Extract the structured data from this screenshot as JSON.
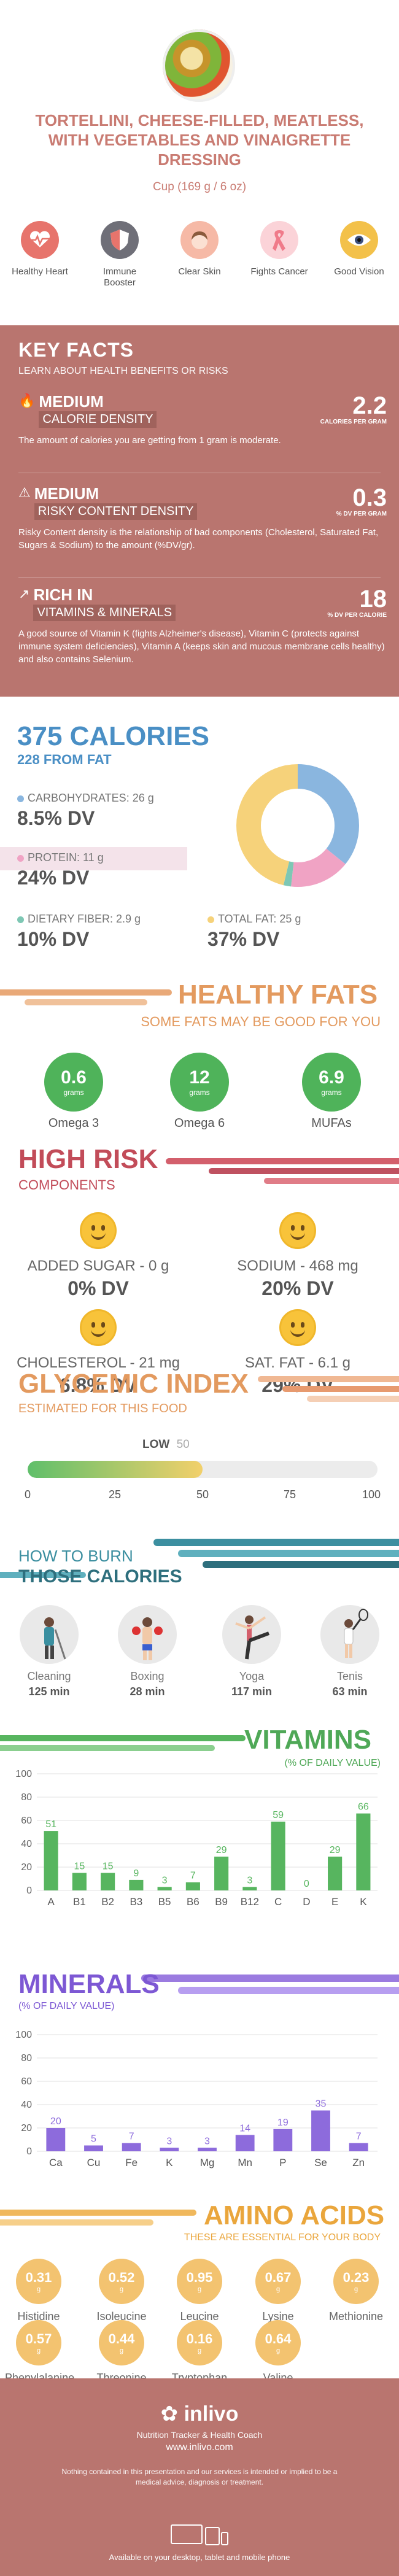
{
  "header": {
    "title": "TORTELLINI, CHEESE-FILLED, MEATLESS, WITH VEGETABLES AND VINAIGRETTE DRESSING",
    "serving": "Cup (169 g / 6 oz)"
  },
  "benefits": [
    {
      "label": "Healthy Heart",
      "icon": "heart-pulse-icon",
      "color": "#e7746c"
    },
    {
      "label": "Immune Booster",
      "icon": "shield-icon",
      "color": "#6f6f78"
    },
    {
      "label": "Clear Skin",
      "icon": "face-icon",
      "color": "#f6b9a6"
    },
    {
      "label": "Fights Cancer",
      "icon": "ribbon-icon",
      "color": "#f07b8a"
    },
    {
      "label": "Good Vision",
      "icon": "eye-icon",
      "color": "#f3c14a"
    }
  ],
  "key_facts": {
    "title": "KEY FACTS",
    "subtitle": "LEARN ABOUT HEALTH BENEFITS OR RISKS",
    "items": [
      {
        "level": "MEDIUM",
        "label": "CALORIE DENSITY",
        "value": "2.2",
        "unit": "CALORIES PER GRAM",
        "desc": "The amount of calories you are getting from 1 gram is moderate."
      },
      {
        "level": "MEDIUM",
        "label": "RISKY CONTENT DENSITY",
        "value": "0.3",
        "unit": "% DV PER GRAM",
        "desc": "Risky Content density is the relationship of bad components (Cholesterol, Saturated Fat, Sugars & Sodium) to the amount (%DV/gr)."
      },
      {
        "level": "RICH IN",
        "label": "VITAMINS & MINERALS",
        "value": "18",
        "unit": "% DV PER CALORIE",
        "desc": "A good source of Vitamin K (fights Alzheimer's disease), Vitamin C (protects against immune system deficiencies), Vitamin A (keeps skin and mucous membrane cells healthy) and also contains Selenium."
      }
    ]
  },
  "calories": {
    "title": "375 CALORIES",
    "subtitle": "228 FROM FAT",
    "carbs": {
      "label": "CARBOHYDRATES: 26 g",
      "dv": "8.5% DV",
      "color": "#8ab6df"
    },
    "protein": {
      "label": "PROTEIN: 11 g",
      "dv": "24% DV",
      "color": "#f0a3c4"
    },
    "fiber": {
      "label": "DIETARY FIBER: 2.9 g",
      "dv": "10% DV",
      "color": "#7ec7b4"
    },
    "fat": {
      "label": "TOTAL FAT: 25 g",
      "dv": "37% DV",
      "color": "#f6d27a"
    }
  },
  "healthy_fats": {
    "title": "HEALTHY FATS",
    "subtitle": "SOME FATS MAY BE GOOD FOR YOU",
    "items": [
      {
        "value": "0.6",
        "unit": "grams",
        "label": "Omega 3"
      },
      {
        "value": "12",
        "unit": "grams",
        "label": "Omega 6"
      },
      {
        "value": "6.9",
        "unit": "grams",
        "label": "MUFAs"
      }
    ]
  },
  "high_risk": {
    "title": "HIGH RISK",
    "subtitle": "COMPONENTS",
    "items": [
      {
        "label": "ADDED SUGAR - 0 g",
        "dv": "0% DV"
      },
      {
        "label": "SODIUM - 468 mg",
        "dv": "20% DV"
      },
      {
        "label": "CHOLESTEROL - 21 mg",
        "dv": "6.8% DV"
      },
      {
        "label": "SAT. FAT - 6.1 g",
        "dv": "29% DV"
      }
    ]
  },
  "glycemic": {
    "title": "GLYCEMIC INDEX",
    "subtitle": "ESTIMATED FOR THIS FOOD",
    "level": "LOW",
    "value": 50,
    "value_text": "50",
    "ticks": [
      "0",
      "25",
      "50",
      "75",
      "100"
    ]
  },
  "burn": {
    "title_top": "HOW TO BURN",
    "title_bottom": "THOSE CALORIES",
    "items": [
      {
        "label": "Cleaning",
        "time": "125 min"
      },
      {
        "label": "Boxing",
        "time": "28 min"
      },
      {
        "label": "Yoga",
        "time": "117 min"
      },
      {
        "label": "Tenis",
        "time": "63 min"
      }
    ]
  },
  "chart_data": [
    {
      "type": "bar",
      "title": "VITAMINS",
      "subtitle": "(% OF DAILY VALUE)",
      "categories": [
        "A",
        "B1",
        "B2",
        "B3",
        "B5",
        "B6",
        "B9",
        "B12",
        "C",
        "D",
        "E",
        "K"
      ],
      "values": [
        51,
        15,
        15,
        9,
        3,
        7,
        29,
        3,
        59,
        0,
        29,
        66
      ],
      "ylim": [
        0,
        100
      ],
      "yticks": [
        "0",
        "20",
        "40",
        "60",
        "80",
        "100"
      ],
      "color": "#57b55f"
    },
    {
      "type": "bar",
      "title": "MINERALS",
      "subtitle": "(% OF DAILY VALUE)",
      "categories": [
        "Ca",
        "Cu",
        "Fe",
        "K",
        "Mg",
        "Mn",
        "P",
        "Se",
        "Zn"
      ],
      "values": [
        20,
        5,
        7,
        3,
        3,
        14,
        19,
        35,
        7
      ],
      "ylim": [
        0,
        100
      ],
      "yticks": [
        "0",
        "20",
        "40",
        "60",
        "80",
        "100"
      ],
      "color": "#8d6bdc"
    }
  ],
  "amino": {
    "title": "AMINO ACIDS",
    "subtitle": "THESE ARE ESSENTIAL FOR YOUR BODY",
    "unit": "g",
    "items": [
      {
        "value": "0.31",
        "label": "Histidine"
      },
      {
        "value": "0.52",
        "label": "Isoleucine"
      },
      {
        "value": "0.95",
        "label": "Leucine"
      },
      {
        "value": "0.67",
        "label": "Lysine"
      },
      {
        "value": "0.23",
        "label": "Methionine"
      },
      {
        "value": "0.57",
        "label": "Phenylalanine"
      },
      {
        "value": "0.44",
        "label": "Threonine"
      },
      {
        "value": "0.16",
        "label": "Tryptophan"
      },
      {
        "value": "0.64",
        "label": "Valine"
      }
    ]
  },
  "footer": {
    "logo": "inlivo",
    "tagline": "Nutrition Tracker & Health Coach",
    "url": "www.inlivo.com",
    "disclaimer": "Nothing contained in this presentation and our services is intended or implied to be a medical advice, diagnosis or treatment.",
    "available": "Available on your desktop, tablet and mobile phone"
  }
}
